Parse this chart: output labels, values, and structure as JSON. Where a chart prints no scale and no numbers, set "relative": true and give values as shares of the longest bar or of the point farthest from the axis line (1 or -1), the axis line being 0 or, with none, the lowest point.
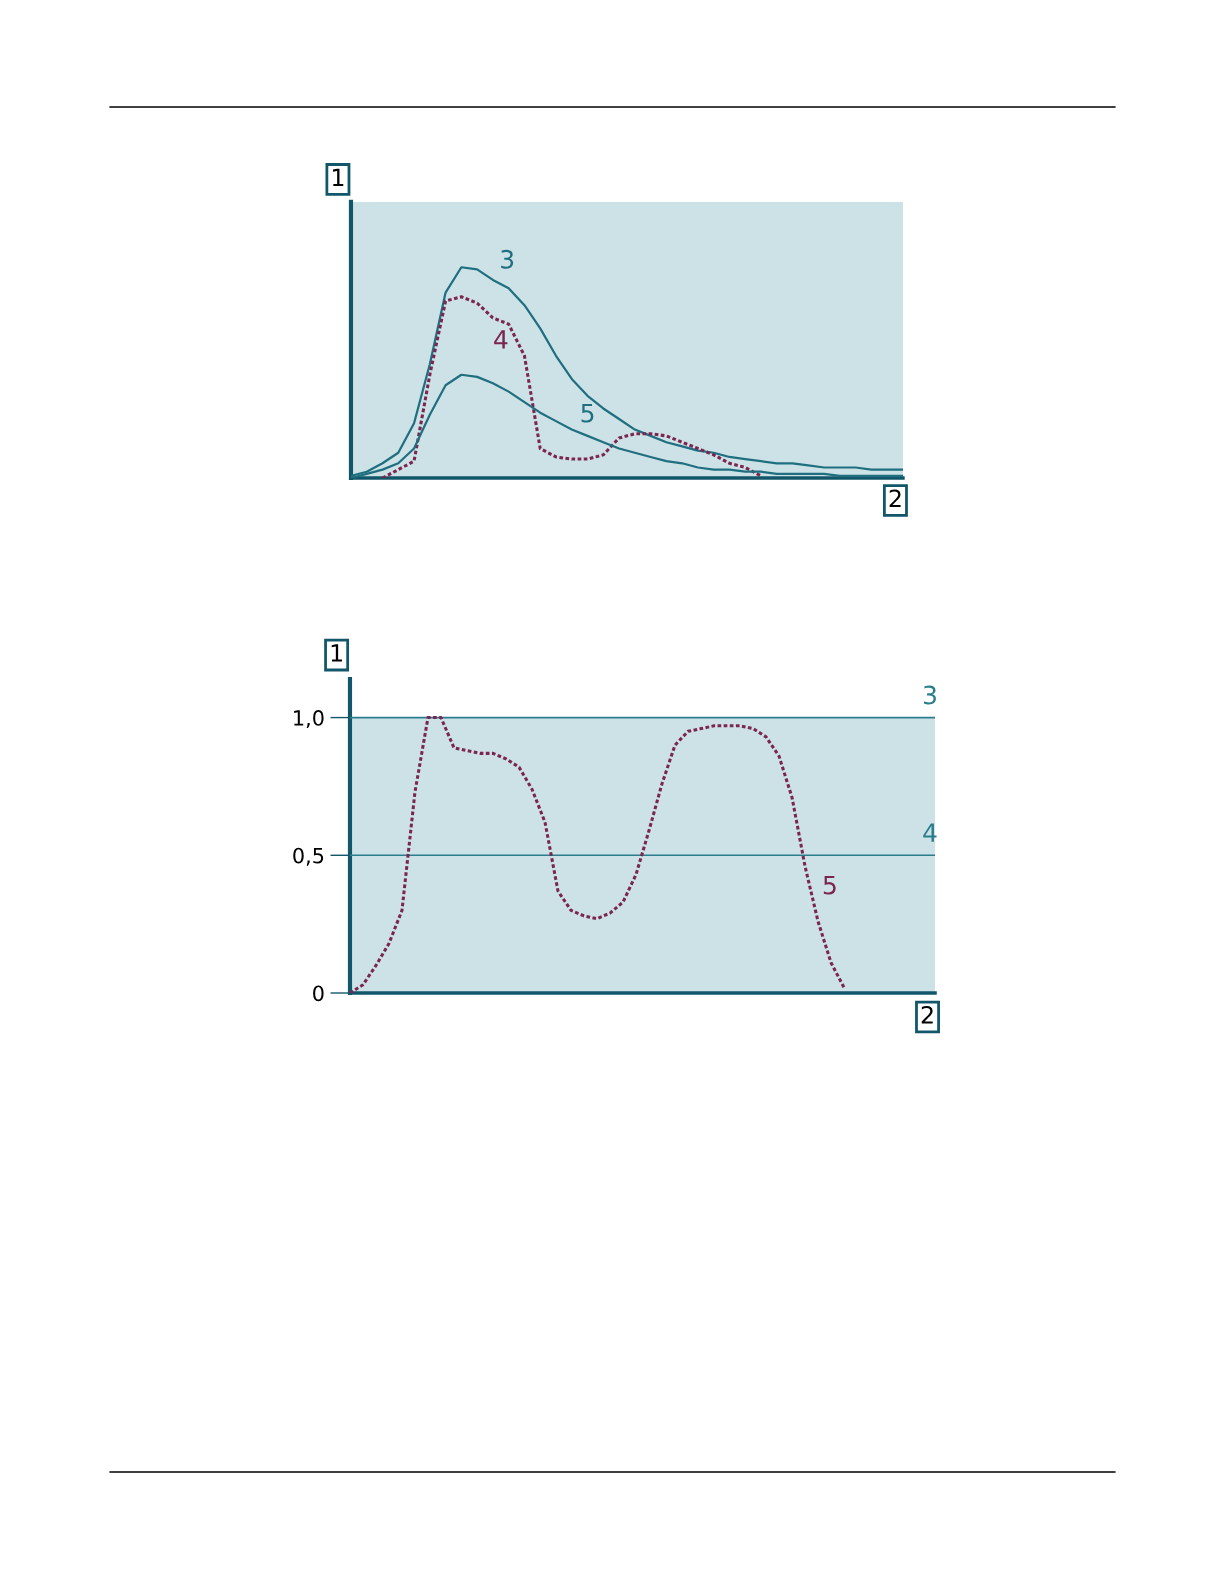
{
  "chart_data": [
    {
      "type": "line",
      "relative": true,
      "xlabel": "2",
      "ylabel": "1",
      "tick_labels": false,
      "grid": false,
      "marker": "none",
      "categories": [
        null,
        null,
        null,
        null,
        null,
        null,
        null,
        null,
        null,
        null,
        null,
        null,
        null,
        null,
        null,
        null,
        null,
        null,
        null,
        null,
        null,
        null,
        null,
        null,
        null,
        null,
        null,
        null,
        null,
        null,
        null,
        null,
        null,
        null,
        null,
        null
      ],
      "series": [
        {
          "name": "3",
          "color": "#1f6f80",
          "line_style": "solid",
          "values": [
            0.01,
            0.03,
            0.07,
            0.12,
            0.26,
            0.54,
            0.88,
            1.0,
            0.99,
            0.94,
            0.9,
            0.82,
            0.71,
            0.58,
            0.47,
            0.39,
            0.33,
            0.28,
            0.23,
            0.2,
            0.17,
            0.15,
            0.13,
            0.12,
            0.1,
            0.09,
            0.08,
            0.07,
            0.07,
            0.06,
            0.05,
            0.05,
            0.05,
            0.04,
            0.04,
            0.04
          ]
        },
        {
          "name": "4",
          "color": "#7b2650",
          "line_style": "dotted",
          "values": [
            null,
            null,
            0.0,
            0.04,
            0.08,
            0.49,
            0.84,
            0.86,
            0.83,
            0.76,
            0.73,
            0.58,
            0.14,
            0.1,
            0.09,
            0.09,
            0.11,
            0.19,
            0.21,
            0.21,
            0.2,
            0.17,
            0.14,
            0.11,
            0.07,
            0.05,
            0.01,
            null,
            null,
            null,
            null,
            null,
            null,
            null,
            null,
            null
          ]
        },
        {
          "name": "5",
          "color": "#1f6f80",
          "line_style": "solid",
          "values": [
            0.0,
            0.02,
            0.04,
            0.07,
            0.14,
            0.3,
            0.44,
            0.49,
            0.48,
            0.45,
            0.41,
            0.36,
            0.31,
            0.27,
            0.23,
            0.2,
            0.17,
            0.14,
            0.12,
            0.1,
            0.08,
            0.07,
            0.05,
            0.04,
            0.04,
            0.03,
            0.03,
            0.02,
            0.02,
            0.02,
            0.02,
            0.01,
            0.01,
            0.01,
            0.01,
            0.01
          ]
        }
      ]
    },
    {
      "type": "line",
      "xlabel": "2",
      "ylabel": "1",
      "tick_labels": "y",
      "grid": false,
      "marker": "none",
      "ylim": [
        0,
        1.14
      ],
      "yticks": [
        0,
        {
          "value": 0.5,
          "label": "0,5"
        },
        {
          "value": 1.0,
          "label": "1,0"
        }
      ],
      "categories": [
        null,
        null,
        null,
        null,
        null,
        null,
        null,
        null,
        null,
        null,
        null,
        null,
        null,
        null,
        null,
        null,
        null,
        null,
        null,
        null,
        null,
        null,
        null,
        null,
        null,
        null,
        null,
        null,
        null,
        null,
        null,
        null,
        null,
        null,
        null,
        null,
        null,
        null,
        null,
        null,
        null,
        null,
        null,
        null,
        null,
        null
      ],
      "bands": [
        {
          "axis": "y",
          "from": 0,
          "to": 1.0,
          "color": "#cde2e6"
        }
      ],
      "series": [
        {
          "name": "3",
          "color": "#2a7d8c",
          "line_style": "solid",
          "values": [
            1.0,
            1.0,
            1.0,
            1.0,
            1.0,
            1.0,
            1.0,
            1.0,
            1.0,
            1.0,
            1.0,
            1.0,
            1.0,
            1.0,
            1.0,
            1.0,
            1.0,
            1.0,
            1.0,
            1.0,
            1.0,
            1.0,
            1.0,
            1.0,
            1.0,
            1.0,
            1.0,
            1.0,
            1.0,
            1.0,
            1.0,
            1.0,
            1.0,
            1.0,
            1.0,
            1.0,
            1.0,
            1.0,
            1.0,
            1.0,
            1.0,
            1.0,
            1.0,
            1.0,
            1.0,
            1.0
          ]
        },
        {
          "name": "4",
          "color": "#2a7d8c",
          "line_style": "solid",
          "values": [
            0.5,
            0.5,
            0.5,
            0.5,
            0.5,
            0.5,
            0.5,
            0.5,
            0.5,
            0.5,
            0.5,
            0.5,
            0.5,
            0.5,
            0.5,
            0.5,
            0.5,
            0.5,
            0.5,
            0.5,
            0.5,
            0.5,
            0.5,
            0.5,
            0.5,
            0.5,
            0.5,
            0.5,
            0.5,
            0.5,
            0.5,
            0.5,
            0.5,
            0.5,
            0.5,
            0.5,
            0.5,
            0.5,
            0.5,
            0.5,
            0.5,
            0.5,
            0.5,
            0.5,
            0.5,
            0.5
          ]
        },
        {
          "name": "5",
          "color": "#7b2650",
          "line_style": "dotted",
          "values": [
            0.0,
            0.03,
            0.1,
            0.18,
            0.3,
            0.73,
            1.0,
            1.0,
            0.89,
            0.88,
            0.87,
            0.87,
            0.85,
            0.82,
            0.74,
            0.62,
            0.37,
            0.3,
            0.28,
            0.27,
            0.29,
            0.33,
            0.43,
            0.59,
            0.76,
            0.9,
            0.95,
            0.96,
            0.97,
            0.97,
            0.97,
            0.96,
            0.93,
            0.86,
            0.71,
            0.46,
            0.26,
            0.11,
            0.02,
            null,
            null,
            null,
            null,
            null,
            null,
            null
          ]
        }
      ]
    }
  ]
}
